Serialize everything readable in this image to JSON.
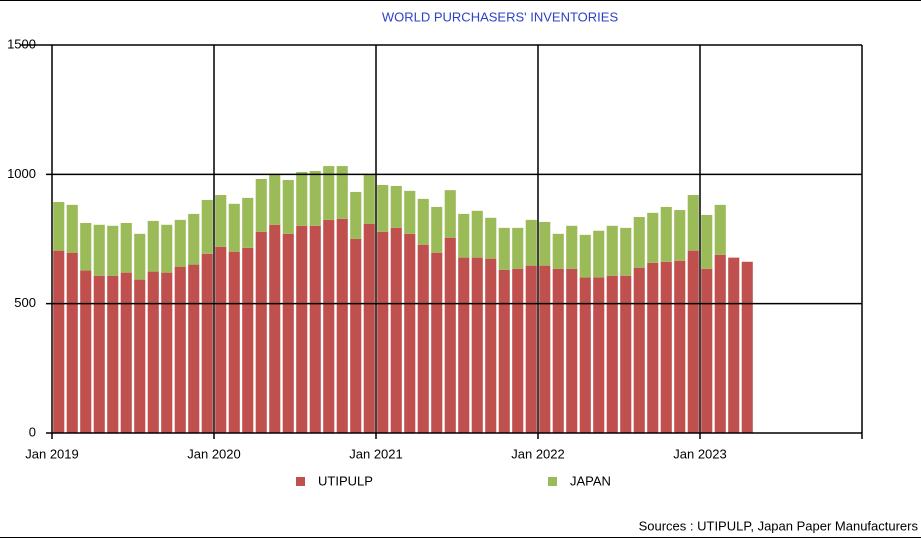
{
  "chart_data": {
    "type": "stacked-bar",
    "title": "WORLD PURCHASERS' INVENTORIES",
    "source": "Sources : UTIPULP, Japan Paper Manufacturers",
    "categories": [
      "Jan 2019",
      null,
      null,
      null,
      null,
      null,
      null,
      null,
      null,
      null,
      null,
      null,
      "Jan 2020",
      null,
      null,
      null,
      null,
      null,
      null,
      null,
      null,
      null,
      null,
      null,
      "Jan 2021",
      null,
      null,
      null,
      null,
      null,
      null,
      null,
      null,
      null,
      null,
      null,
      "Jan 2022",
      null,
      null,
      null,
      null,
      null,
      null,
      null,
      null,
      null,
      null,
      null,
      "Jan 2023",
      null,
      null,
      null,
      null,
      null,
      null,
      null,
      null,
      null,
      null,
      null
    ],
    "series": [
      {
        "name": "UTIPULP",
        "color": "#c0504d",
        "values": [
          705,
          697,
          628,
          608,
          608,
          620,
          593,
          624,
          620,
          643,
          651,
          693,
          720,
          701,
          716,
          778,
          805,
          770,
          801,
          801,
          824,
          828,
          751,
          809,
          778,
          793,
          770,
          728,
          697,
          755,
          678,
          678,
          674,
          631,
          635,
          647,
          647,
          635,
          635,
          601,
          601,
          608,
          608,
          639,
          658,
          662,
          666,
          705,
          635,
          689,
          678,
          662,
          null,
          null,
          null,
          null,
          null,
          null,
          null,
          null
        ]
      },
      {
        "name": "JAPAN",
        "color": "#9bbb59",
        "values": [
          188,
          185,
          184,
          197,
          193,
          192,
          177,
          196,
          185,
          181,
          196,
          208,
          200,
          185,
          193,
          204,
          196,
          208,
          208,
          212,
          208,
          204,
          181,
          192,
          181,
          162,
          166,
          177,
          177,
          184,
          169,
          181,
          158,
          162,
          158,
          177,
          169,
          135,
          166,
          165,
          181,
          193,
          185,
          196,
          193,
          212,
          196,
          215,
          208,
          193,
          null,
          null,
          null,
          null,
          null,
          null,
          null,
          null,
          null,
          null
        ]
      }
    ],
    "ylim": [
      0,
      1500
    ],
    "yticks": [
      0,
      500,
      1000,
      1500
    ],
    "grid": true,
    "legend": "bottom"
  }
}
